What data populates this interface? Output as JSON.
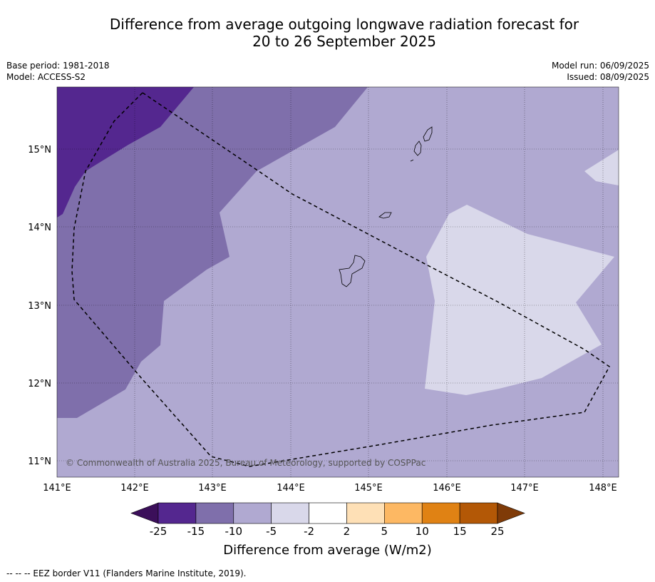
{
  "title_line1": "Difference from average outgoing longwave radiation forecast for",
  "title_line2": "20 to 26 September 2025",
  "base_period": "Base period: 1981-2018",
  "model": "Model: ACCESS-S2",
  "model_run": "Model run: 06/09/2025",
  "issued": "Issued: 08/09/2025",
  "copyright": "© Commonwealth of Australia 2025, Bureau of Meteorology, supported by COSPPac",
  "lon_ticks": [
    "141°E",
    "142°E",
    "143°E",
    "144°E",
    "145°E",
    "146°E",
    "147°E",
    "148°E"
  ],
  "lat_ticks": [
    "15°N",
    "14°N",
    "13°N",
    "12°N",
    "11°N"
  ],
  "colorbar": {
    "title": "Difference from average (W/m2)",
    "labels": [
      "-25",
      "-15",
      "-10",
      "-5",
      "-2",
      "2",
      "5",
      "10",
      "15",
      "25"
    ],
    "colors": [
      "#3b0f5a",
      "#54278f",
      "#7f6fab",
      "#b0a9d1",
      "#d9d8ea",
      "#ffffff",
      "#fee0b6",
      "#fdb863",
      "#e08214",
      "#b35806",
      "#7f3b08"
    ]
  },
  "footnote": "--  --  -- EEZ border V11 (Flanders Marine Institute, 2019).",
  "colors": {
    "band_lt_minus15": "#54278f",
    "band_minus15_minus10": "#7f6fab",
    "band_minus10_minus5": "#b0a9d1",
    "band_minus5_minus2": "#d9d8ea"
  }
}
